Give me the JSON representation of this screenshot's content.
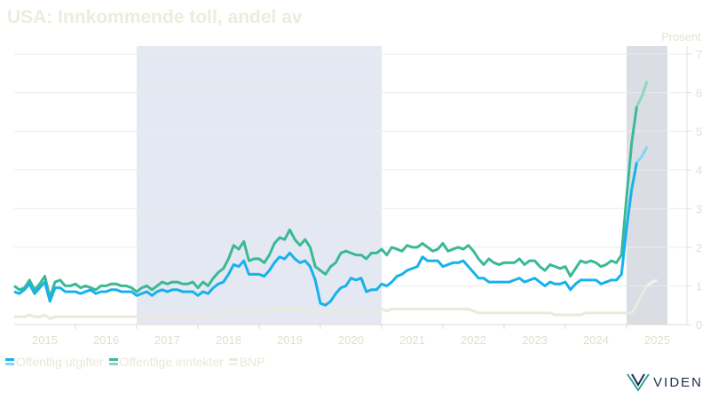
{
  "title": "USA: Innkommende toll, andel av",
  "logo": "VIDEN",
  "chart_data": {
    "type": "line",
    "title": "USA: Innkommende toll, andel av",
    "ylabel": "Prosent",
    "ylim": [
      0,
      7
    ],
    "yticks": [
      "0",
      "1",
      "2",
      "3",
      "4",
      "5",
      "6",
      "7"
    ],
    "xticks": [
      "2015",
      "2016",
      "2017",
      "2018",
      "2019",
      "2020",
      "2021",
      "2022",
      "2023",
      "2024",
      "2025"
    ],
    "x_start": "2015-01",
    "frequency": "monthly",
    "shaded_periods": [
      [
        "2017-01",
        "2021-01"
      ],
      [
        "2025-01",
        "2025-09"
      ]
    ],
    "estimated_last_points": 2,
    "legend_position": "bottom-left",
    "series": [
      {
        "name": "Offentlig utgifter",
        "color": "#17b1ec",
        "light": "#7fd6f5",
        "values": [
          0.85,
          0.8,
          0.9,
          1.05,
          0.8,
          0.95,
          1.1,
          0.6,
          0.95,
          0.95,
          0.85,
          0.85,
          0.85,
          0.8,
          0.85,
          0.9,
          0.8,
          0.85,
          0.85,
          0.9,
          0.9,
          0.85,
          0.85,
          0.85,
          0.75,
          0.8,
          0.85,
          0.75,
          0.85,
          0.9,
          0.85,
          0.9,
          0.9,
          0.85,
          0.85,
          0.85,
          0.75,
          0.85,
          0.8,
          0.95,
          1.05,
          1.1,
          1.3,
          1.55,
          1.5,
          1.65,
          1.3,
          1.3,
          1.3,
          1.25,
          1.4,
          1.6,
          1.75,
          1.7,
          1.85,
          1.7,
          1.6,
          1.65,
          1.5,
          1.15,
          0.55,
          0.5,
          0.6,
          0.8,
          0.95,
          1.0,
          1.2,
          1.15,
          1.2,
          0.85,
          0.9,
          0.9,
          1.05,
          1.0,
          1.1,
          1.25,
          1.3,
          1.4,
          1.45,
          1.5,
          1.75,
          1.65,
          1.65,
          1.65,
          1.5,
          1.55,
          1.6,
          1.6,
          1.65,
          1.5,
          1.35,
          1.2,
          1.2,
          1.1,
          1.1,
          1.1,
          1.1,
          1.1,
          1.15,
          1.2,
          1.1,
          1.15,
          1.2,
          1.1,
          1.0,
          1.1,
          1.05,
          1.05,
          1.1,
          0.9,
          1.05,
          1.15,
          1.15,
          1.15,
          1.15,
          1.05,
          1.1,
          1.15,
          1.15,
          1.3,
          2.5,
          3.5,
          4.2,
          4.35,
          4.6
        ]
      },
      {
        "name": "Offentlige inntekter",
        "color": "#3ab996",
        "light": "#8ad8c0",
        "values": [
          1.0,
          0.9,
          0.95,
          1.15,
          0.9,
          1.05,
          1.25,
          0.7,
          1.1,
          1.15,
          1.0,
          1.0,
          1.05,
          0.95,
          1.0,
          0.95,
          0.9,
          1.0,
          1.0,
          1.05,
          1.05,
          1.0,
          1.0,
          0.95,
          0.85,
          0.95,
          1.0,
          0.9,
          1.0,
          1.1,
          1.05,
          1.1,
          1.1,
          1.05,
          1.05,
          1.1,
          0.95,
          1.1,
          1.0,
          1.2,
          1.35,
          1.45,
          1.7,
          2.05,
          1.95,
          2.15,
          1.65,
          1.7,
          1.7,
          1.6,
          1.8,
          2.1,
          2.25,
          2.2,
          2.45,
          2.2,
          2.05,
          2.2,
          2.0,
          1.5,
          1.4,
          1.3,
          1.5,
          1.6,
          1.85,
          1.9,
          1.85,
          1.8,
          1.8,
          1.7,
          1.85,
          1.85,
          1.95,
          1.8,
          2.0,
          1.95,
          1.9,
          2.05,
          2.0,
          2.0,
          2.1,
          2.0,
          1.9,
          1.95,
          2.1,
          1.9,
          1.95,
          2.0,
          1.95,
          2.05,
          1.9,
          1.7,
          1.55,
          1.7,
          1.6,
          1.55,
          1.6,
          1.6,
          1.6,
          1.7,
          1.55,
          1.65,
          1.65,
          1.5,
          1.4,
          1.55,
          1.5,
          1.45,
          1.5,
          1.25,
          1.45,
          1.65,
          1.6,
          1.65,
          1.6,
          1.5,
          1.55,
          1.65,
          1.6,
          1.8,
          3.3,
          4.7,
          5.65,
          5.9,
          6.3
        ]
      },
      {
        "name": "BNP",
        "color": "#ece9dc",
        "light": "#f3f1e9",
        "values": [
          0.2,
          0.2,
          0.2,
          0.25,
          0.2,
          0.2,
          0.25,
          0.15,
          0.2,
          0.2,
          0.2,
          0.2,
          0.2,
          0.2,
          0.2,
          0.2,
          0.2,
          0.2,
          0.2,
          0.2,
          0.2,
          0.2,
          0.2,
          0.2,
          0.2,
          0.2,
          0.2,
          0.2,
          0.2,
          0.2,
          0.2,
          0.2,
          0.2,
          0.2,
          0.2,
          0.2,
          0.2,
          0.2,
          0.2,
          0.25,
          0.25,
          0.3,
          0.3,
          0.35,
          0.35,
          0.35,
          0.35,
          0.35,
          0.35,
          0.35,
          0.35,
          0.4,
          0.4,
          0.4,
          0.4,
          0.4,
          0.4,
          0.4,
          0.35,
          0.3,
          0.3,
          0.3,
          0.3,
          0.3,
          0.3,
          0.35,
          0.35,
          0.35,
          0.35,
          0.35,
          0.35,
          0.35,
          0.4,
          0.35,
          0.4,
          0.4,
          0.4,
          0.4,
          0.4,
          0.4,
          0.4,
          0.4,
          0.4,
          0.4,
          0.4,
          0.4,
          0.4,
          0.4,
          0.4,
          0.4,
          0.35,
          0.3,
          0.3,
          0.3,
          0.3,
          0.3,
          0.3,
          0.3,
          0.3,
          0.3,
          0.3,
          0.3,
          0.3,
          0.3,
          0.3,
          0.3,
          0.25,
          0.25,
          0.25,
          0.25,
          0.25,
          0.25,
          0.3,
          0.3,
          0.3,
          0.3,
          0.3,
          0.3,
          0.3,
          0.3,
          0.3,
          0.3,
          0.5,
          0.8,
          1.0,
          1.1,
          1.15
        ]
      }
    ]
  }
}
